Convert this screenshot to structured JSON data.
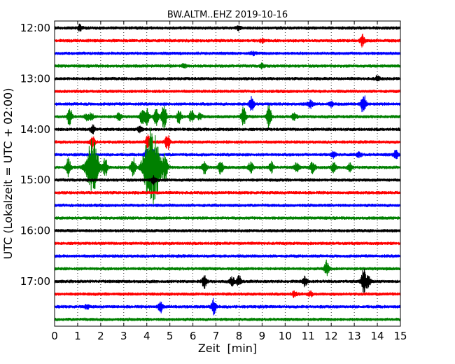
{
  "chart_data": {
    "type": "line",
    "title": "BW.ALTM..EHZ 2019-10-16",
    "xlabel": "Zeit  [min]",
    "ylabel": "UTC (Lokalzeit = UTC + 02:00)",
    "xlim": [
      0,
      15
    ],
    "x_ticks": [
      "0",
      "1",
      "2",
      "3",
      "4",
      "5",
      "6",
      "7",
      "8",
      "9",
      "10",
      "11",
      "12",
      "13",
      "14",
      "15"
    ],
    "y_tick_labels": [
      "12:00",
      "13:00",
      "14:00",
      "15:00",
      "16:00",
      "17:00"
    ],
    "grid": "vertical dotted lines at each minute",
    "trace_colors": [
      "#000000",
      "#ff0000",
      "#0000ff",
      "#008000"
    ],
    "traces": [
      {
        "start": "12:00",
        "color": "#000000",
        "events": [
          [
            1.1,
            0.45
          ],
          [
            8.0,
            0.3
          ]
        ]
      },
      {
        "start": "12:15",
        "color": "#ff0000",
        "events": [
          [
            9.0,
            0.25
          ],
          [
            13.35,
            0.9
          ]
        ]
      },
      {
        "start": "12:30",
        "color": "#0000ff",
        "events": [
          [
            8.6,
            0.25
          ]
        ]
      },
      {
        "start": "12:45",
        "color": "#008000",
        "events": [
          [
            5.6,
            0.3
          ],
          [
            9.0,
            0.35
          ]
        ]
      },
      {
        "start": "13:00",
        "color": "#000000",
        "events": [
          [
            14.0,
            0.35
          ]
        ]
      },
      {
        "start": "13:15",
        "color": "#ff0000",
        "events": []
      },
      {
        "start": "13:30",
        "color": "#0000ff",
        "events": [
          [
            8.55,
            1.2
          ],
          [
            11.1,
            0.6
          ],
          [
            12.0,
            0.35
          ],
          [
            13.4,
            1.8
          ]
        ]
      },
      {
        "start": "13:45",
        "color": "#008000",
        "events": [
          [
            0.65,
            1.4
          ],
          [
            1.4,
            0.5
          ],
          [
            1.6,
            0.5
          ],
          [
            2.8,
            0.6
          ],
          [
            3.8,
            1.0
          ],
          [
            4.0,
            1.3
          ],
          [
            4.4,
            1.3
          ],
          [
            4.75,
            2.0
          ],
          [
            5.4,
            1.0
          ],
          [
            5.95,
            1.0
          ],
          [
            6.3,
            0.5
          ],
          [
            8.2,
            1.5
          ],
          [
            9.3,
            1.8
          ],
          [
            10.4,
            0.6
          ]
        ]
      },
      {
        "start": "14:00",
        "color": "#000000",
        "events": [
          [
            1.65,
            0.7
          ],
          [
            3.7,
            0.5
          ]
        ]
      },
      {
        "start": "14:15",
        "color": "#ff0000",
        "events": [
          [
            1.65,
            1.0
          ],
          [
            4.05,
            1.0
          ],
          [
            4.9,
            1.2
          ]
        ]
      },
      {
        "start": "14:30",
        "color": "#0000ff",
        "events": [
          [
            4.0,
            1.0
          ],
          [
            4.3,
            0.8
          ],
          [
            12.1,
            0.5
          ],
          [
            13.2,
            0.35
          ],
          [
            14.8,
            0.6
          ]
        ]
      },
      {
        "start": "14:45",
        "color": "#008000",
        "events": [
          [
            0.6,
            1.4
          ],
          [
            1.65,
            4.5
          ],
          [
            2.2,
            1.4
          ],
          [
            3.4,
            1.6
          ],
          [
            4.1,
            5.0
          ],
          [
            4.4,
            3.6
          ],
          [
            4.8,
            2.0
          ],
          [
            6.5,
            1.0
          ],
          [
            7.2,
            1.0
          ],
          [
            8.5,
            0.8
          ],
          [
            9.4,
            0.8
          ],
          [
            10.5,
            0.7
          ],
          [
            11.2,
            1.0
          ],
          [
            12.1,
            0.7
          ],
          [
            12.8,
            0.6
          ]
        ]
      },
      {
        "start": "15:00",
        "color": "#000000",
        "events": [
          [
            4.3,
            0.6
          ]
        ]
      },
      {
        "start": "15:15",
        "color": "#ff0000",
        "events": []
      },
      {
        "start": "15:30",
        "color": "#0000ff",
        "events": []
      },
      {
        "start": "15:45",
        "color": "#008000",
        "events": []
      },
      {
        "start": "16:00",
        "color": "#000000",
        "events": []
      },
      {
        "start": "16:15",
        "color": "#ff0000",
        "events": []
      },
      {
        "start": "16:30",
        "color": "#0000ff",
        "events": []
      },
      {
        "start": "16:45",
        "color": "#008000",
        "events": [
          [
            11.8,
            1.2
          ]
        ]
      },
      {
        "start": "17:00",
        "color": "#000000",
        "events": [
          [
            6.5,
            1.0
          ],
          [
            7.7,
            0.7
          ],
          [
            8.0,
            0.8
          ],
          [
            10.85,
            0.7
          ],
          [
            13.4,
            2.0
          ],
          [
            13.6,
            1.0
          ]
        ]
      },
      {
        "start": "17:15",
        "color": "#ff0000",
        "events": [
          [
            10.4,
            0.45
          ],
          [
            11.1,
            0.35
          ]
        ]
      },
      {
        "start": "17:30",
        "color": "#0000ff",
        "events": [
          [
            1.4,
            0.3
          ],
          [
            4.6,
            1.0
          ],
          [
            6.9,
            1.2
          ]
        ]
      },
      {
        "start": "17:45",
        "color": "#008000",
        "events": []
      }
    ]
  }
}
